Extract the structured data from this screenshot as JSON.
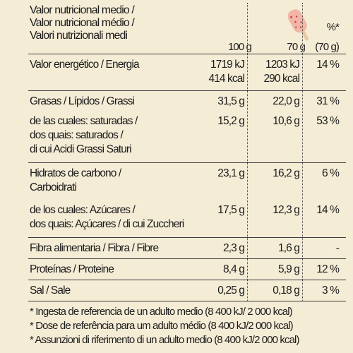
{
  "header": {
    "title_lines": [
      "Valor nutricional medio /",
      "Valor nutricional médio /",
      "Valori nutrizionali medi"
    ],
    "col_100": "100 g",
    "col_70": "70 g",
    "col_pct_line1": "%*",
    "col_pct_line2": "(70 g)"
  },
  "rows": [
    {
      "label": [
        "Valor energético / Energia"
      ],
      "v100": [
        "1719 kJ",
        "414 kcal"
      ],
      "v70": [
        "1203 kJ",
        "290 kcal"
      ],
      "pct": "14 %"
    },
    {
      "label": [
        "Grasas / Lípidos / Grassi"
      ],
      "v100": [
        "31,5 g"
      ],
      "v70": [
        "22,0 g"
      ],
      "pct": "31 %"
    },
    {
      "label": [
        "de las cuales: saturadas /",
        "dos quais: saturados /",
        "di cui Acidi Grassi Saturi"
      ],
      "v100": [
        "15,2 g"
      ],
      "v70": [
        "10,6 g"
      ],
      "pct": "53 %"
    },
    {
      "label": [
        "Hidratos de carbono /",
        "Carboidrati"
      ],
      "v100": [
        "23,1 g"
      ],
      "v70": [
        "16,2 g"
      ],
      "pct": "6 %"
    },
    {
      "label": [
        "de los cuales: Azúcares /",
        "dos quais: Açúcares / di cui Zuccheri"
      ],
      "v100": [
        "17,5 g"
      ],
      "v70": [
        "12,3 g"
      ],
      "pct": "14 %"
    },
    {
      "label": [
        "Fibra alimentaria / Fibra / Fibre"
      ],
      "v100": [
        "2,3 g"
      ],
      "v70": [
        "1,6 g"
      ],
      "pct": "-"
    },
    {
      "label": [
        "Proteínas / Proteine"
      ],
      "v100": [
        "8,4 g"
      ],
      "v70": [
        "5,9 g"
      ],
      "pct": "12 %"
    },
    {
      "label": [
        "Sal / Sale"
      ],
      "v100": [
        "0,25 g"
      ],
      "v70": [
        "0,18 g"
      ],
      "pct": "3 %"
    }
  ],
  "footnotes": [
    "* Ingesta de referencia de un adulto medio (8 400 kJ/ 2 000 kcal)",
    "* Dose de referência para um adulto médio (8 400 kJ/2 000 kcal)",
    "* Assunzioni di riferimento di un adulto medio (8 400 kJ/2 000 kcal)"
  ],
  "icons": {
    "header_illustration": "popsicle-icon"
  },
  "colors": {
    "background": "#f5ecd6",
    "text": "#1c1c1c",
    "popsicle": "#f2b6a7"
  }
}
